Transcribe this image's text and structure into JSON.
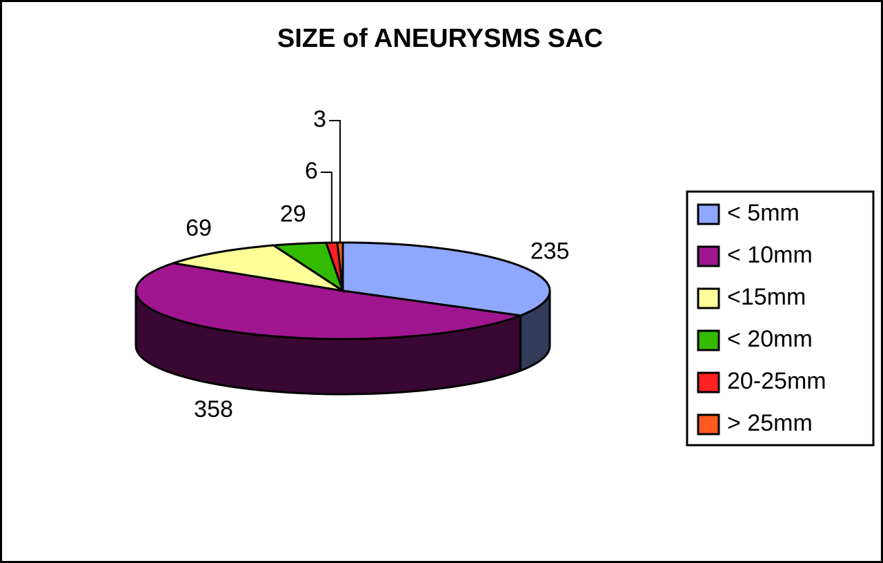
{
  "chart_data": {
    "type": "pie",
    "title": "SIZE of ANEURYSMS SAC",
    "categories": [
      "< 5mm",
      "< 10mm",
      "<15mm",
      "< 20mm",
      "20-25mm",
      "> 25mm"
    ],
    "values": [
      235,
      358,
      69,
      29,
      6,
      3
    ],
    "colors": [
      "#8fa8ff",
      "#a0168f",
      "#ffff99",
      "#33bb00",
      "#ff2020",
      "#ff5a20"
    ],
    "legend": "right"
  }
}
